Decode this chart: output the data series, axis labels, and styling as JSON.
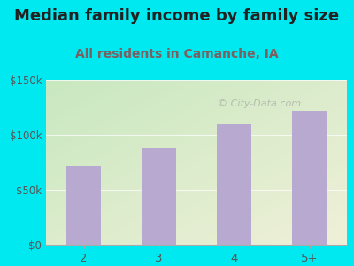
{
  "title": "Median family income by family size",
  "subtitle": "All residents in Camanche, IA",
  "categories": [
    "2",
    "3",
    "4",
    "5+"
  ],
  "values": [
    72000,
    88000,
    110000,
    122000
  ],
  "bar_color": "#b8a9d0",
  "background_outer": "#00e8f0",
  "ylim": [
    0,
    150000
  ],
  "yticks": [
    0,
    50000,
    100000,
    150000
  ],
  "ytick_labels": [
    "$0",
    "$50k",
    "$100k",
    "$150k"
  ],
  "title_fontsize": 13,
  "subtitle_fontsize": 10,
  "title_color": "#222222",
  "subtitle_color": "#7a6060",
  "tick_color": "#555555",
  "watermark": "City-Data.com",
  "grad_top_left": "#c8e8c0",
  "grad_bottom_right": "#f0f0d8"
}
